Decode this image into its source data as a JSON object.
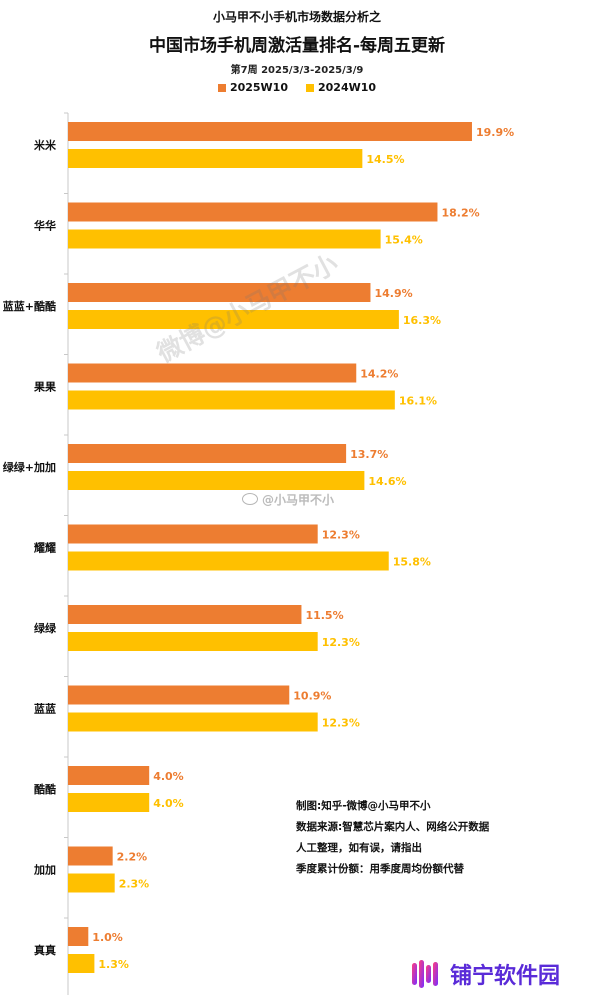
{
  "header": {
    "supertitle": "小马甲不小手机市场数据分析之",
    "title": "中国市场手机周激活量排名-每周五更新",
    "subtitle": "第7周 2025/3/3-2025/3/9"
  },
  "colors": {
    "series_2025": "#ed7d31",
    "series_2024": "#ffc000",
    "axis": "#c8c8c8",
    "text": "#111111"
  },
  "chart_data": {
    "type": "bar",
    "orientation": "horizontal",
    "categories": [
      "米米",
      "华华",
      "蓝蓝+酷酷",
      "果果",
      "绿绿+加加",
      "耀耀",
      "绿绿",
      "蓝蓝",
      "酷酷",
      "加加",
      "真真"
    ],
    "series": [
      {
        "name": "2025W10",
        "values": [
          19.9,
          18.2,
          14.9,
          14.2,
          13.7,
          12.3,
          11.5,
          10.9,
          4.0,
          2.2,
          1.0
        ],
        "labels": [
          "19.9%",
          "18.2%",
          "14.9%",
          "14.2%",
          "13.7%",
          "12.3%",
          "11.5%",
          "10.9%",
          "4.0%",
          "2.2%",
          "1.0%"
        ]
      },
      {
        "name": "2024W10",
        "values": [
          14.5,
          15.4,
          16.3,
          16.1,
          14.6,
          15.8,
          12.3,
          12.3,
          4.0,
          2.3,
          1.3
        ],
        "labels": [
          "14.5%",
          "15.4%",
          "16.3%",
          "16.1%",
          "14.6%",
          "15.8%",
          "12.3%",
          "12.3%",
          "4.0%",
          "2.3%",
          "1.3%"
        ]
      }
    ],
    "xlim": [
      0,
      22
    ],
    "legend_position": "top-center",
    "grid": false
  },
  "notes": [
    "制图:知乎-微博@小马甲不小",
    "数据来源:智慧芯片案内人、网络公开数据",
    "人工整理，如有误，请指出",
    "季度累计份额：用季度周均份额代替"
  ],
  "watermarks": {
    "main": "微博@小马甲不小",
    "secondary": "@小马甲不小"
  },
  "brand": {
    "name": "铺宁软件园"
  }
}
